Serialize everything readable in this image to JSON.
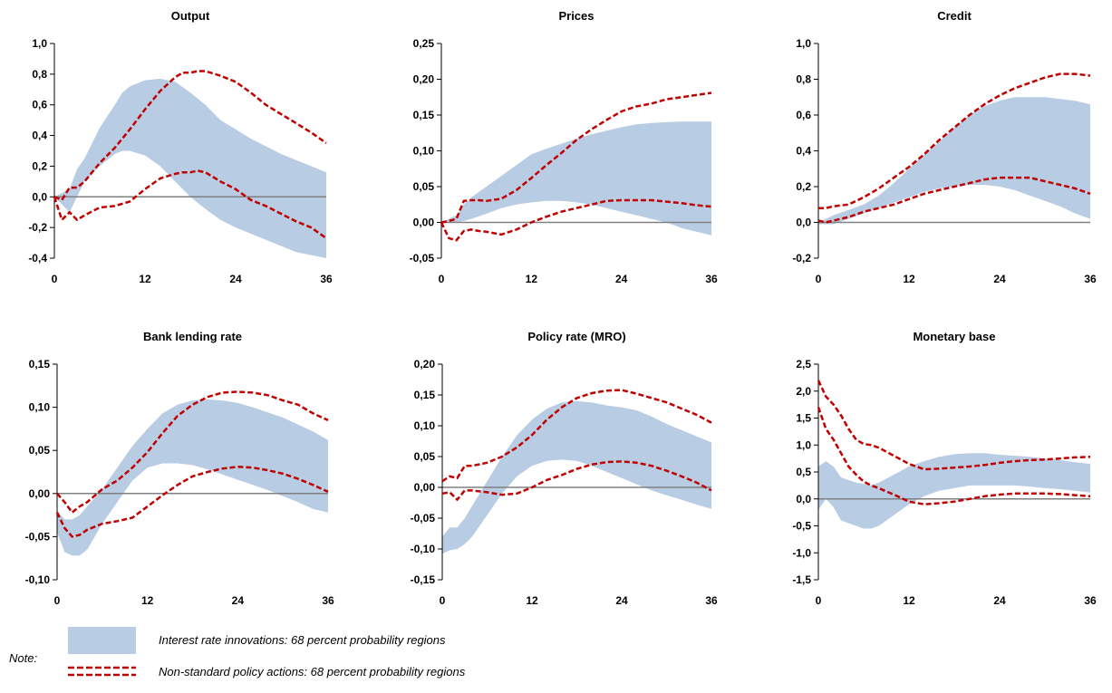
{
  "colors": {
    "band": "#b8cce4",
    "dashed": "#c00000",
    "zero_line": "#808080",
    "axis": "#000000"
  },
  "chart_data": [
    {
      "type": "area",
      "title": "Output",
      "x_ticks": [
        "0",
        "12",
        "24",
        "36"
      ],
      "xlim": [
        0,
        36
      ],
      "ylim": [
        -0.4,
        1.0
      ],
      "y_ticks": [
        "-0,4",
        "-0,2",
        "0,0",
        "0,2",
        "0,4",
        "0,6",
        "0,8",
        "1,0"
      ],
      "y_tick_values": [
        -0.4,
        -0.2,
        0.0,
        0.2,
        0.4,
        0.6,
        0.8,
        1.0
      ],
      "band": {
        "name": "Interest rate innovations: 68 percent probability regions",
        "x": [
          0,
          2,
          3,
          4,
          6,
          8,
          9,
          10,
          12,
          14,
          16,
          18,
          20,
          22,
          24,
          26,
          28,
          30,
          32,
          34,
          36
        ],
        "lower": [
          0.0,
          -0.1,
          0.0,
          0.1,
          0.2,
          0.28,
          0.3,
          0.3,
          0.27,
          0.2,
          0.1,
          0.0,
          -0.08,
          -0.15,
          -0.2,
          -0.24,
          -0.28,
          -0.32,
          -0.36,
          -0.38,
          -0.4
        ],
        "upper": [
          0.0,
          0.05,
          0.18,
          0.25,
          0.45,
          0.6,
          0.68,
          0.72,
          0.76,
          0.77,
          0.75,
          0.68,
          0.6,
          0.5,
          0.44,
          0.38,
          0.33,
          0.28,
          0.24,
          0.2,
          0.16
        ]
      },
      "dashed": {
        "name": "Non-standard policy actions: 68 percent probability regions",
        "x": [
          0,
          1,
          2,
          3,
          4,
          6,
          8,
          10,
          12,
          14,
          16,
          17,
          18,
          19,
          20,
          22,
          24,
          26,
          28,
          30,
          32,
          34,
          36
        ],
        "lower": [
          0.0,
          -0.15,
          -0.1,
          -0.15,
          -0.12,
          -0.07,
          -0.06,
          -0.03,
          0.05,
          0.12,
          0.15,
          0.16,
          0.16,
          0.17,
          0.16,
          0.1,
          0.05,
          -0.02,
          -0.06,
          -0.11,
          -0.16,
          -0.2,
          -0.27
        ],
        "upper": [
          0.0,
          -0.02,
          0.06,
          0.06,
          0.1,
          0.22,
          0.32,
          0.44,
          0.57,
          0.69,
          0.78,
          0.81,
          0.81,
          0.82,
          0.82,
          0.79,
          0.75,
          0.68,
          0.6,
          0.54,
          0.48,
          0.42,
          0.35
        ]
      }
    },
    {
      "type": "area",
      "title": "Prices",
      "x_ticks": [
        "0",
        "12",
        "24",
        "36"
      ],
      "xlim": [
        0,
        36
      ],
      "ylim": [
        -0.05,
        0.25
      ],
      "y_ticks": [
        "-0,05",
        "0,00",
        "0,05",
        "0,10",
        "0,15",
        "0,20",
        "0,25"
      ],
      "y_tick_values": [
        -0.05,
        0.0,
        0.05,
        0.1,
        0.15,
        0.2,
        0.25
      ],
      "band": {
        "name": "Interest rate innovations: 68 percent probability regions",
        "x": [
          0,
          2,
          3,
          4,
          6,
          8,
          10,
          12,
          14,
          16,
          18,
          20,
          22,
          24,
          26,
          28,
          30,
          32,
          34,
          36
        ],
        "lower": [
          0.0,
          0.0,
          0.002,
          0.005,
          0.012,
          0.02,
          0.025,
          0.028,
          0.03,
          0.03,
          0.028,
          0.025,
          0.02,
          0.015,
          0.01,
          0.005,
          0.0,
          -0.008,
          -0.013,
          -0.018
        ],
        "upper": [
          0.0,
          0.01,
          0.025,
          0.035,
          0.05,
          0.065,
          0.08,
          0.095,
          0.103,
          0.11,
          0.117,
          0.123,
          0.128,
          0.133,
          0.137,
          0.139,
          0.14,
          0.141,
          0.141,
          0.141
        ]
      },
      "dashed": {
        "name": "Non-standard policy actions: 68 percent probability regions",
        "x": [
          0,
          1,
          2,
          3,
          4,
          5,
          6,
          8,
          10,
          12,
          14,
          16,
          18,
          20,
          22,
          24,
          26,
          28,
          30,
          32,
          34,
          36
        ],
        "lower": [
          0.0,
          -0.022,
          -0.025,
          -0.012,
          -0.01,
          -0.012,
          -0.013,
          -0.017,
          -0.01,
          0.0,
          0.008,
          0.015,
          0.02,
          0.025,
          0.03,
          0.031,
          0.031,
          0.031,
          0.029,
          0.027,
          0.024,
          0.022
        ],
        "upper": [
          0.0,
          0.002,
          0.005,
          0.03,
          0.031,
          0.031,
          0.03,
          0.033,
          0.045,
          0.062,
          0.08,
          0.097,
          0.115,
          0.13,
          0.143,
          0.155,
          0.162,
          0.166,
          0.172,
          0.175,
          0.178,
          0.181
        ]
      }
    },
    {
      "type": "area",
      "title": "Credit",
      "x_ticks": [
        "0",
        "12",
        "24",
        "36"
      ],
      "xlim": [
        0,
        36
      ],
      "ylim": [
        -0.2,
        1.0
      ],
      "y_ticks": [
        "-0,2",
        "0,0",
        "0,2",
        "0,4",
        "0,6",
        "0,8",
        "1,0"
      ],
      "y_tick_values": [
        -0.2,
        0.0,
        0.2,
        0.4,
        0.6,
        0.8,
        1.0
      ],
      "band": {
        "name": "Interest rate innovations: 68 percent probability regions",
        "x": [
          0,
          2,
          4,
          6,
          8,
          10,
          12,
          14,
          16,
          18,
          20,
          22,
          24,
          26,
          28,
          30,
          32,
          34,
          36
        ],
        "lower": [
          -0.01,
          -0.01,
          0.02,
          0.05,
          0.08,
          0.11,
          0.14,
          0.17,
          0.19,
          0.2,
          0.21,
          0.21,
          0.2,
          0.18,
          0.15,
          0.12,
          0.09,
          0.05,
          0.02
        ],
        "upper": [
          0.0,
          0.04,
          0.07,
          0.1,
          0.15,
          0.22,
          0.3,
          0.38,
          0.45,
          0.53,
          0.6,
          0.65,
          0.68,
          0.7,
          0.7,
          0.7,
          0.69,
          0.68,
          0.66
        ]
      },
      "dashed": {
        "name": "Non-standard policy actions: 68 percent probability regions",
        "x": [
          0,
          1,
          2,
          4,
          6,
          8,
          10,
          12,
          14,
          16,
          18,
          20,
          22,
          24,
          26,
          28,
          30,
          32,
          34,
          36
        ],
        "lower": [
          0.01,
          0.0,
          0.01,
          0.03,
          0.06,
          0.08,
          0.1,
          0.13,
          0.16,
          0.18,
          0.2,
          0.22,
          0.24,
          0.25,
          0.25,
          0.25,
          0.23,
          0.21,
          0.19,
          0.16
        ],
        "upper": [
          0.08,
          0.08,
          0.09,
          0.1,
          0.14,
          0.19,
          0.25,
          0.31,
          0.38,
          0.46,
          0.53,
          0.6,
          0.66,
          0.71,
          0.75,
          0.78,
          0.81,
          0.83,
          0.83,
          0.82
        ]
      }
    },
    {
      "type": "area",
      "title": "Bank lending rate",
      "x_ticks": [
        "0",
        "12",
        "24",
        "36"
      ],
      "xlim": [
        0,
        36
      ],
      "ylim": [
        -0.1,
        0.15
      ],
      "y_ticks": [
        "-0,10",
        "-0,05",
        "0,00",
        "0,05",
        "0,10",
        "0,15"
      ],
      "y_tick_values": [
        -0.1,
        -0.05,
        0.0,
        0.05,
        0.1,
        0.15
      ],
      "band": {
        "name": "Interest rate innovations: 68 percent probability regions",
        "x": [
          0,
          1,
          2,
          3,
          4,
          5,
          6,
          8,
          10,
          12,
          14,
          16,
          18,
          20,
          22,
          24,
          26,
          28,
          30,
          32,
          34,
          36
        ],
        "lower": [
          -0.045,
          -0.068,
          -0.072,
          -0.072,
          -0.065,
          -0.05,
          -0.035,
          -0.01,
          0.015,
          0.03,
          0.035,
          0.035,
          0.033,
          0.028,
          0.022,
          0.016,
          0.01,
          0.004,
          -0.003,
          -0.01,
          -0.018,
          -0.022
        ],
        "upper": [
          -0.02,
          -0.03,
          -0.03,
          -0.025,
          -0.015,
          -0.005,
          0.005,
          0.03,
          0.055,
          0.075,
          0.093,
          0.103,
          0.108,
          0.109,
          0.108,
          0.105,
          0.1,
          0.094,
          0.088,
          0.08,
          0.072,
          0.062
        ]
      },
      "dashed": {
        "name": "Non-standard policy actions: 68 percent probability regions",
        "x": [
          0,
          1,
          2,
          3,
          4,
          6,
          8,
          10,
          12,
          14,
          16,
          18,
          20,
          22,
          24,
          26,
          28,
          30,
          32,
          34,
          36
        ],
        "lower": [
          -0.022,
          -0.04,
          -0.05,
          -0.048,
          -0.042,
          -0.035,
          -0.032,
          -0.028,
          -0.015,
          -0.002,
          0.01,
          0.02,
          0.025,
          0.029,
          0.031,
          0.03,
          0.027,
          0.023,
          0.017,
          0.01,
          0.002
        ],
        "upper": [
          0.0,
          -0.01,
          -0.022,
          -0.015,
          -0.01,
          0.005,
          0.015,
          0.03,
          0.048,
          0.07,
          0.09,
          0.103,
          0.112,
          0.117,
          0.118,
          0.117,
          0.114,
          0.108,
          0.103,
          0.093,
          0.085
        ]
      }
    },
    {
      "type": "area",
      "title": "Policy rate (MRO)",
      "x_ticks": [
        "0",
        "12",
        "24",
        "36"
      ],
      "xlim": [
        0,
        36
      ],
      "ylim": [
        -0.15,
        0.2
      ],
      "y_ticks": [
        "-0,15",
        "-0,10",
        "-0,05",
        "0,00",
        "0,05",
        "0,10",
        "0,15",
        "0,20"
      ],
      "y_tick_values": [
        -0.15,
        -0.1,
        -0.05,
        0.0,
        0.05,
        0.1,
        0.15,
        0.2
      ],
      "band": {
        "name": "Interest rate innovations: 68 percent probability regions",
        "x": [
          0,
          1,
          2,
          3,
          4,
          6,
          8,
          10,
          12,
          14,
          16,
          18,
          20,
          22,
          24,
          26,
          28,
          30,
          32,
          34,
          36
        ],
        "lower": [
          -0.108,
          -0.102,
          -0.1,
          -0.092,
          -0.08,
          -0.045,
          -0.01,
          0.018,
          0.035,
          0.043,
          0.045,
          0.043,
          0.035,
          0.025,
          0.015,
          0.005,
          -0.005,
          -0.013,
          -0.02,
          -0.028,
          -0.035
        ],
        "upper": [
          -0.08,
          -0.065,
          -0.065,
          -0.05,
          -0.03,
          0.01,
          0.05,
          0.085,
          0.11,
          0.128,
          0.138,
          0.14,
          0.138,
          0.133,
          0.13,
          0.125,
          0.115,
          0.103,
          0.093,
          0.083,
          0.073
        ]
      },
      "dashed": {
        "name": "Non-standard policy actions: 68 percent probability regions",
        "x": [
          0,
          1,
          2,
          3,
          4,
          6,
          8,
          10,
          12,
          14,
          16,
          18,
          20,
          22,
          24,
          26,
          28,
          30,
          32,
          34,
          36
        ],
        "lower": [
          -0.01,
          -0.008,
          -0.02,
          -0.005,
          -0.005,
          -0.008,
          -0.012,
          -0.01,
          0.0,
          0.012,
          0.02,
          0.03,
          0.037,
          0.041,
          0.042,
          0.04,
          0.035,
          0.027,
          0.018,
          0.008,
          -0.005
        ],
        "upper": [
          0.01,
          0.018,
          0.015,
          0.035,
          0.035,
          0.04,
          0.05,
          0.065,
          0.085,
          0.11,
          0.13,
          0.145,
          0.153,
          0.157,
          0.158,
          0.152,
          0.145,
          0.138,
          0.128,
          0.118,
          0.105
        ]
      }
    },
    {
      "type": "area",
      "title": "Monetary base",
      "x_ticks": [
        "0",
        "12",
        "24",
        "36"
      ],
      "xlim": [
        0,
        36
      ],
      "ylim": [
        -1.5,
        2.5
      ],
      "y_ticks": [
        "-1,5",
        "-1,0",
        "-0,5",
        "0,0",
        "0,5",
        "1,0",
        "1,5",
        "2,0",
        "2,5"
      ],
      "y_tick_values": [
        -1.5,
        -1.0,
        -0.5,
        0.0,
        0.5,
        1.0,
        1.5,
        2.0,
        2.5
      ],
      "band": {
        "name": "Interest rate innovations: 68 percent probability regions",
        "x": [
          0,
          1,
          2,
          3,
          4,
          5,
          6,
          7,
          8,
          10,
          12,
          14,
          16,
          18,
          20,
          22,
          24,
          26,
          28,
          30,
          32,
          34,
          36
        ],
        "lower": [
          -0.2,
          0.0,
          -0.15,
          -0.4,
          -0.45,
          -0.5,
          -0.55,
          -0.55,
          -0.5,
          -0.3,
          -0.1,
          0.05,
          0.15,
          0.2,
          0.25,
          0.25,
          0.25,
          0.25,
          0.23,
          0.2,
          0.18,
          0.15,
          0.12
        ],
        "upper": [
          0.6,
          0.7,
          0.6,
          0.4,
          0.35,
          0.3,
          0.28,
          0.25,
          0.3,
          0.45,
          0.6,
          0.7,
          0.78,
          0.83,
          0.85,
          0.85,
          0.82,
          0.8,
          0.78,
          0.75,
          0.72,
          0.68,
          0.65
        ]
      },
      "dashed": {
        "name": "Non-standard policy actions: 68 percent probability regions",
        "x": [
          0,
          1,
          2,
          3,
          4,
          5,
          6,
          7,
          8,
          10,
          12,
          14,
          16,
          18,
          20,
          22,
          24,
          26,
          28,
          30,
          32,
          34,
          36
        ],
        "lower": [
          1.7,
          1.3,
          1.1,
          0.85,
          0.6,
          0.45,
          0.32,
          0.25,
          0.2,
          0.08,
          -0.05,
          -0.1,
          -0.08,
          -0.05,
          0.0,
          0.05,
          0.08,
          0.1,
          0.1,
          0.1,
          0.09,
          0.07,
          0.05
        ],
        "upper": [
          2.2,
          1.9,
          1.75,
          1.55,
          1.3,
          1.1,
          1.02,
          1.0,
          0.95,
          0.8,
          0.65,
          0.55,
          0.56,
          0.58,
          0.6,
          0.63,
          0.67,
          0.7,
          0.72,
          0.73,
          0.75,
          0.77,
          0.78
        ]
      }
    }
  ],
  "legend": {
    "note_label": "Note:",
    "band_label": "Interest rate innovations: 68 percent probability regions",
    "dashed_label": "Non-standard policy actions: 68 percent probability regions"
  }
}
